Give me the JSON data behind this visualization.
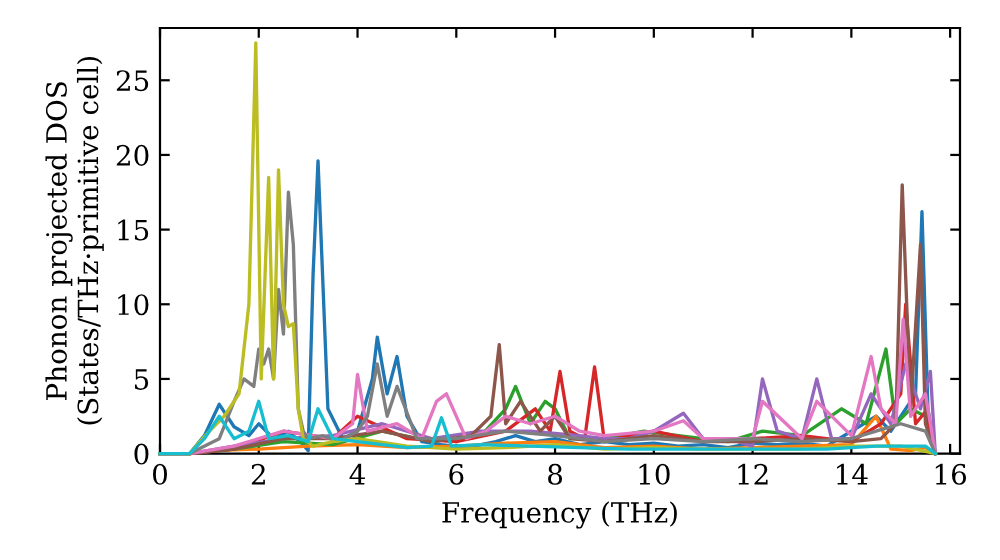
{
  "chart_data": {
    "type": "line",
    "xlabel": "Frequency (THz)",
    "ylabel": "Phonon projected DOS\n(States/THz·primitive cell)",
    "xlim": [
      0,
      16.2
    ],
    "ylim": [
      0,
      28.5
    ],
    "xticks": [
      0,
      2,
      4,
      6,
      8,
      10,
      12,
      14,
      16
    ],
    "yticks": [
      0,
      5,
      10,
      15,
      20,
      25
    ],
    "grid": false,
    "marker": "none",
    "line_style": "solid",
    "series": [
      {
        "color": "#1f77b4",
        "x": [
          0,
          0.6,
          0.9,
          1.2,
          1.5,
          1.8,
          2.0,
          2.3,
          2.6,
          2.9,
          3.0,
          3.1,
          3.2,
          3.4,
          3.7,
          4.0,
          4.3,
          4.4,
          4.6,
          4.8,
          5.0,
          5.3,
          5.7,
          6.2,
          6.8,
          7.2,
          7.6,
          8.0,
          8.5,
          9.0,
          9.5,
          10.0,
          10.5,
          11.0,
          11.5,
          12.0,
          12.5,
          13.0,
          13.5,
          14.0,
          14.5,
          14.8,
          15.1,
          15.3,
          15.43,
          15.55,
          15.7
        ],
        "values": [
          0,
          0,
          1.2,
          3.3,
          1.8,
          1.2,
          2.0,
          1.0,
          1.5,
          0.6,
          0.2,
          12,
          19.6,
          3.0,
          1.0,
          1.5,
          5.0,
          7.8,
          4.0,
          6.5,
          2.5,
          0.8,
          0.6,
          0.4,
          0.8,
          1.2,
          0.8,
          1.0,
          0.6,
          0.8,
          0.6,
          0.7,
          0.5,
          0.6,
          0.4,
          0.7,
          0.6,
          0.7,
          0.5,
          1.5,
          2.5,
          1.5,
          3.0,
          4.0,
          16.2,
          3.0,
          0
        ]
      },
      {
        "color": "#ff7f0e",
        "x": [
          0,
          0.6,
          1.0,
          2.0,
          3.0,
          4.0,
          5.0,
          6.0,
          7.0,
          8.0,
          9.0,
          10.0,
          11.0,
          12.0,
          13.0,
          14.0,
          14.5,
          14.8,
          15.2,
          15.5,
          15.7
        ],
        "values": [
          0,
          0,
          0.2,
          0.3,
          0.5,
          0.6,
          0.4,
          0.5,
          0.7,
          0.8,
          0.4,
          0.5,
          0.3,
          0.4,
          0.5,
          0.6,
          2.5,
          0.3,
          0.2,
          0.4,
          0
        ]
      },
      {
        "color": "#2ca02c",
        "x": [
          0,
          0.6,
          1.5,
          2.5,
          3.5,
          4.5,
          5.5,
          6.5,
          7.0,
          7.2,
          7.5,
          7.8,
          8.0,
          8.3,
          9.0,
          9.8,
          10.5,
          11.5,
          12.2,
          13.0,
          13.8,
          14.3,
          14.7,
          14.9,
          15.2,
          15.5,
          15.7
        ],
        "values": [
          0,
          0,
          0.3,
          0.8,
          0.6,
          1.5,
          0.8,
          1.2,
          3.0,
          4.5,
          2.0,
          3.5,
          3.0,
          1.0,
          1.0,
          1.5,
          1.2,
          0.8,
          1.5,
          1.2,
          3.0,
          2.0,
          7.0,
          2.0,
          3.0,
          2.5,
          0
        ]
      },
      {
        "color": "#d62728",
        "x": [
          0,
          0.6,
          1.5,
          2.5,
          3.5,
          4.0,
          5.0,
          6.0,
          7.0,
          7.6,
          7.9,
          8.1,
          8.3,
          8.6,
          8.8,
          9.0,
          9.5,
          10.0,
          11.0,
          12.0,
          13.0,
          14.0,
          14.6,
          15.0,
          15.1,
          15.3,
          15.5,
          15.7
        ],
        "values": [
          0,
          0,
          0.3,
          1.5,
          1.0,
          2.5,
          1.0,
          0.8,
          1.5,
          3.0,
          1.5,
          5.5,
          1.5,
          1.0,
          5.8,
          0.8,
          1.2,
          1.5,
          0.8,
          1.0,
          1.2,
          0.8,
          2.0,
          4.0,
          10.0,
          2.0,
          2.8,
          0
        ]
      },
      {
        "color": "#9467bd",
        "x": [
          0,
          0.6,
          1.5,
          2.5,
          3.5,
          4.5,
          5.5,
          6.5,
          7.5,
          8.5,
          9.0,
          9.5,
          10.0,
          10.6,
          11.0,
          11.5,
          12.0,
          12.2,
          12.5,
          13.0,
          13.3,
          13.6,
          14.0,
          14.4,
          14.8,
          15.1,
          15.4,
          15.6,
          15.7
        ],
        "values": [
          0,
          0,
          0.5,
          1.0,
          1.2,
          2.0,
          1.0,
          1.5,
          1.5,
          1.2,
          1.0,
          1.0,
          1.5,
          2.7,
          1.0,
          1.0,
          0.5,
          5.0,
          1.5,
          1.0,
          5.0,
          1.0,
          1.0,
          4.0,
          2.0,
          6.0,
          3.0,
          5.5,
          0
        ]
      },
      {
        "color": "#8c564b",
        "x": [
          0,
          0.6,
          1.5,
          2.5,
          3.5,
          4.5,
          5.5,
          6.3,
          6.7,
          6.87,
          7.0,
          7.3,
          7.7,
          8.0,
          8.3,
          9.0,
          10.0,
          11.0,
          12.0,
          13.0,
          14.0,
          14.6,
          14.9,
          15.03,
          15.2,
          15.4,
          15.5,
          15.7
        ],
        "values": [
          0,
          0,
          0.3,
          1.0,
          1.0,
          1.5,
          0.8,
          1.2,
          2.5,
          7.3,
          2.0,
          3.5,
          1.5,
          2.5,
          1.0,
          0.8,
          1.2,
          0.8,
          0.8,
          1.0,
          0.8,
          1.0,
          2.0,
          18.0,
          3.0,
          14.0,
          2.0,
          0
        ]
      },
      {
        "color": "#e377c2",
        "x": [
          0,
          0.6,
          1.5,
          2.5,
          3.5,
          3.9,
          4.0,
          4.2,
          4.8,
          5.3,
          5.6,
          5.8,
          6.2,
          6.6,
          7.0,
          7.5,
          8.0,
          8.5,
          9.0,
          10.0,
          10.6,
          11.0,
          12.0,
          12.2,
          13.0,
          13.3,
          14.0,
          14.4,
          14.6,
          14.9,
          15.05,
          15.2,
          15.5,
          15.7
        ],
        "values": [
          0,
          0,
          0.5,
          1.5,
          1.0,
          2.0,
          5.3,
          1.5,
          2.0,
          1.0,
          3.5,
          4.0,
          1.0,
          1.5,
          2.5,
          2.0,
          2.5,
          1.5,
          1.2,
          1.5,
          2.2,
          1.0,
          1.0,
          3.5,
          1.0,
          3.5,
          1.2,
          6.5,
          3.0,
          2.0,
          9.0,
          2.5,
          4.0,
          0
        ]
      },
      {
        "color": "#7f7f7f",
        "x": [
          0,
          0.6,
          1.2,
          1.5,
          1.7,
          1.9,
          2.0,
          2.1,
          2.2,
          2.3,
          2.4,
          2.5,
          2.6,
          2.7,
          2.8,
          2.9,
          3.0,
          3.3,
          3.6,
          4.0,
          4.2,
          4.4,
          4.6,
          4.8,
          5.2,
          6.0,
          7.0,
          8.0,
          9.0,
          10.0,
          11.0,
          12.0,
          13.0,
          14.0,
          14.5,
          15.0,
          15.5,
          15.7
        ],
        "values": [
          0,
          0,
          1.0,
          3.5,
          5.0,
          4.5,
          7.0,
          6.0,
          7.0,
          5.0,
          11.0,
          8.0,
          17.5,
          14.0,
          3.0,
          1.5,
          1.0,
          1.2,
          0.8,
          1.5,
          2.5,
          6.0,
          2.5,
          4.5,
          1.0,
          1.0,
          1.5,
          1.2,
          0.8,
          1.0,
          0.8,
          1.0,
          0.8,
          1.0,
          1.5,
          2.0,
          1.5,
          0
        ]
      },
      {
        "color": "#bcbd22",
        "x": [
          0,
          0.6,
          1.0,
          1.3,
          1.6,
          1.8,
          1.94,
          2.05,
          2.2,
          2.3,
          2.4,
          2.5,
          2.6,
          2.7,
          2.8,
          2.9,
          3.1,
          3.5,
          4.0,
          5.0,
          6.0,
          7.0,
          8.0,
          9.0,
          10.0,
          11.0,
          12.0,
          13.0,
          14.0,
          15.0,
          15.7
        ],
        "values": [
          0,
          0,
          1.5,
          2.5,
          4.0,
          10.0,
          27.5,
          5.0,
          18.5,
          5.0,
          19.0,
          10.0,
          8.5,
          8.7,
          3.0,
          1.0,
          0.5,
          0.8,
          1.0,
          0.5,
          0.3,
          0.4,
          0.6,
          0.3,
          0.4,
          0.3,
          0.3,
          0.3,
          0.5,
          0.5,
          0
        ]
      },
      {
        "color": "#17becf",
        "x": [
          0,
          0.6,
          0.9,
          1.2,
          1.5,
          1.8,
          2.0,
          2.2,
          2.6,
          3.0,
          3.2,
          3.5,
          4.0,
          4.5,
          5.0,
          5.5,
          5.7,
          5.9,
          6.5,
          7.5,
          8.5,
          9.5,
          10.5,
          11.5,
          12.5,
          13.5,
          14.5,
          15.5,
          15.7
        ],
        "values": [
          0,
          0,
          1.0,
          2.5,
          1.0,
          1.5,
          3.5,
          1.0,
          1.2,
          0.8,
          3.0,
          1.0,
          0.8,
          0.6,
          0.4,
          0.5,
          2.4,
          0.5,
          0.6,
          0.5,
          0.4,
          0.3,
          0.3,
          0.3,
          0.3,
          0.3,
          0.5,
          0.5,
          0
        ]
      }
    ]
  }
}
